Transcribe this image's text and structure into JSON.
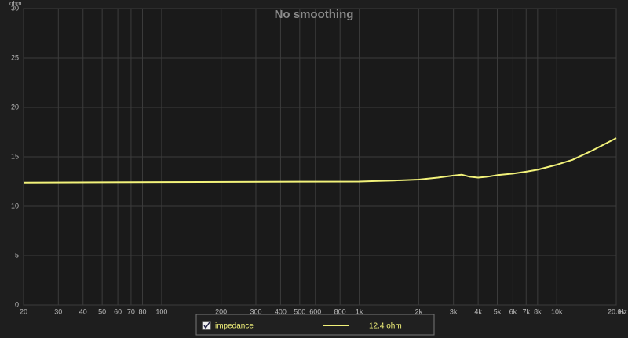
{
  "chart_data": {
    "type": "line",
    "title": "No smoothing",
    "y_unit": "ohm",
    "x_unit": "Hz",
    "x": [
      20,
      100,
      1000,
      1200,
      1500,
      2000,
      2500,
      3000,
      3300,
      3600,
      4000,
      4500,
      5000,
      6000,
      7000,
      8000,
      10000,
      12000,
      15000,
      20000
    ],
    "series": [
      {
        "name": "impedance",
        "color": "#f2f27a",
        "legend_value": "12.4 ohm",
        "values": [
          12.4,
          12.45,
          12.5,
          12.55,
          12.6,
          12.7,
          12.9,
          13.1,
          13.2,
          13.0,
          12.9,
          13.0,
          13.15,
          13.3,
          13.5,
          13.7,
          14.2,
          14.7,
          15.6,
          16.9
        ]
      }
    ],
    "xscale": "log",
    "xlim": [
      20,
      20000
    ],
    "xticks": [
      20,
      30,
      40,
      50,
      60,
      70,
      80,
      100,
      200,
      300,
      400,
      500,
      600,
      800,
      {
        "value": 1000,
        "label": "1k"
      },
      {
        "value": 2000,
        "label": "2k"
      },
      {
        "value": 3000,
        "label": "3k"
      },
      {
        "value": 4000,
        "label": "4k"
      },
      {
        "value": 5000,
        "label": "5k"
      },
      {
        "value": 6000,
        "label": "6k"
      },
      {
        "value": 7000,
        "label": "7k"
      },
      {
        "value": 8000,
        "label": "8k"
      },
      {
        "value": 10000,
        "label": "10k"
      },
      {
        "value": 20000,
        "label": "20.0k"
      }
    ],
    "ylim": [
      0,
      30
    ],
    "yticks": [
      0,
      5,
      10,
      15,
      20,
      25,
      30
    ],
    "grid": true
  }
}
